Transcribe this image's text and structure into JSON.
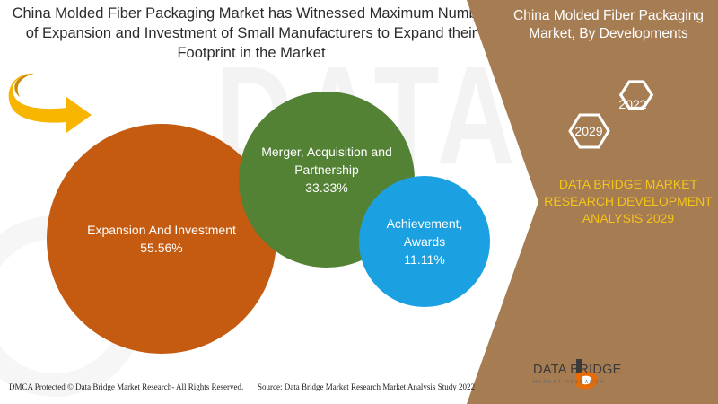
{
  "header": {
    "title": "China Molded Fiber Packaging Market has Witnessed Maximum Number of Expansion and Investment of Small Manufacturers to Expand their Footprint in the Market"
  },
  "chart_data": {
    "type": "bubble",
    "title": "China Molded Fiber Packaging Market, By Developments",
    "categories": [
      "Expansion And Investment",
      "Merger, Acquisition and Partnership",
      "Achievement, Awards"
    ],
    "values": [
      55.56,
      33.33,
      11.11
    ],
    "value_labels": [
      "55.56%",
      "33.33%",
      "11.11%"
    ],
    "unit": "%",
    "colors": [
      "#c55a11",
      "#548235",
      "#1ba1e2"
    ]
  },
  "side_panel": {
    "title": "China Molded Fiber Packaging Market, By Developments",
    "hex_years": [
      "2022",
      "2029"
    ],
    "analysis_text": "DATA BRIDGE MARKET RESEARCH DEVELOPMENT ANALYSIS 2029",
    "background_color": "#a67c52",
    "accent_color": "#f5c518"
  },
  "footer": {
    "copyright": "DMCA Protected © Data Bridge Market Research- All Rights Reserved.",
    "source": "Source: Data Bridge Market Research Market Analysis Study 2022"
  },
  "logo": {
    "name": "DATA BRIDGE",
    "tagline": "MARKET RESEARCH"
  },
  "watermark": {
    "text": "DATA BRIDGE"
  }
}
